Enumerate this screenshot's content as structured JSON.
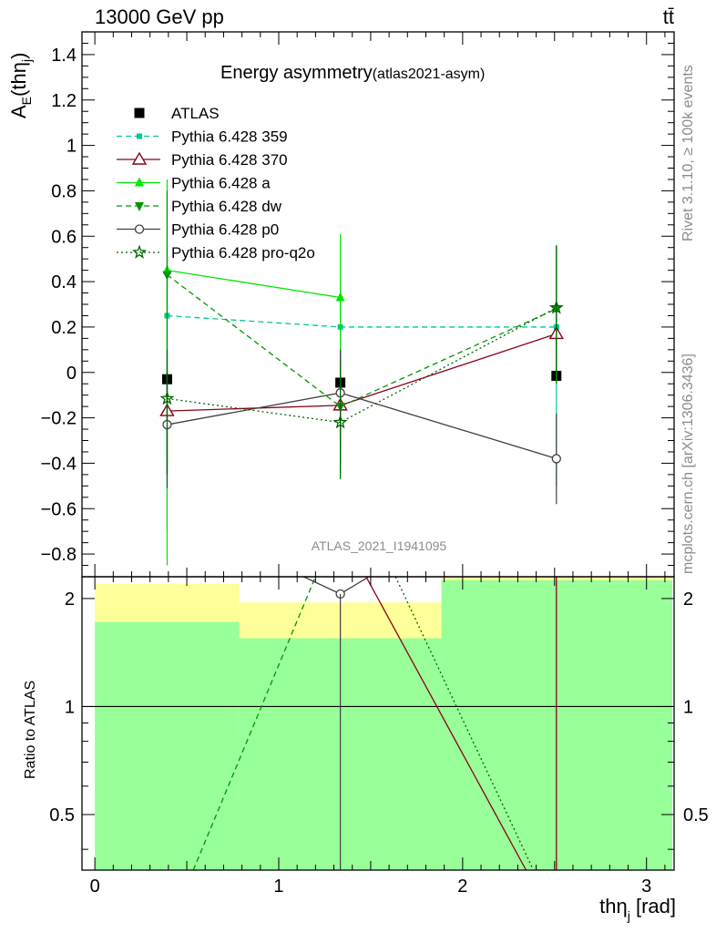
{
  "header": {
    "left": "13000 GeV pp",
    "right": "tt̄"
  },
  "side": {
    "rivet": "Rivet 3.1.10, ≥ 100k events",
    "mcplots": "mcplots.cern.ch [arXiv:1306.3436]"
  },
  "analysis_id": "ATLAS_2021_I1941095",
  "colors": {
    "atlas": "#000000",
    "p359": "#00c896",
    "p370": "#8b0018",
    "pa": "#00e600",
    "pdw": "#009600",
    "pp0": "#404040",
    "pq2o": "#006400",
    "band_yellow": "#ffff99",
    "band_green": "#99ff99"
  },
  "chart_data": [
    {
      "type": "scatter",
      "title": "Energy asymmetry",
      "title_suffix": "(atlas2021-asym)",
      "ylabel": "A_E(thη_j)",
      "ylabel_base": "A",
      "ylabel_sub": "E",
      "ylabel_rest": "(thη",
      "ylabel_sub2": "j",
      "ylabel_end": ")",
      "xlim": [
        -0.07,
        3.15
      ],
      "ylim": [
        -0.9,
        1.5
      ],
      "ytick_labels": [
        "−0.8",
        "−0.6",
        "−0.4",
        "−0.2",
        "0",
        "0.2",
        "0.4",
        "0.6",
        "0.8",
        "1",
        "1.2",
        "1.4"
      ],
      "yticks": [
        -0.8,
        -0.6,
        -0.4,
        -0.2,
        0,
        0.2,
        0.4,
        0.6,
        0.8,
        1,
        1.2,
        1.4
      ],
      "legend_position": "top-left",
      "series": [
        {
          "name": "ATLAS",
          "color": "#000000",
          "marker": "square",
          "line": "none",
          "x": [
            0.393,
            1.335,
            2.51
          ],
          "y": [
            -0.03,
            -0.045,
            -0.015
          ],
          "err": [
            [
              -0.06,
              -0.06
            ],
            [
              -0.06,
              -0.06
            ],
            [
              -0.06,
              -0.06
            ]
          ]
        },
        {
          "name": "Pythia 6.428 359",
          "color": "#00c896",
          "marker": "smallsquare",
          "line": "dashed",
          "x": [
            0.393,
            1.335,
            2.51
          ],
          "y": [
            0.25,
            0.2,
            0.2
          ],
          "err": [
            [
              -0.7,
              0.55
            ],
            [
              -0.45,
              0.4
            ],
            [
              -0.5,
              0.55
            ]
          ]
        },
        {
          "name": "Pythia 6.428 370",
          "color": "#8b0018",
          "marker": "opentriangle",
          "line": "solid",
          "x": [
            0.393,
            1.335,
            2.51
          ],
          "y": [
            -0.17,
            -0.145,
            0.17
          ],
          "err": [
            [
              -0.45,
              0.0
            ],
            [
              -0.35,
              0.1
            ],
            [
              -0.05,
              0.25
            ]
          ]
        },
        {
          "name": "Pythia 6.428 a",
          "color": "#00e600",
          "marker": "triangle",
          "line": "solid",
          "x": [
            0.393,
            1.335
          ],
          "y": [
            0.45,
            0.33
          ],
          "err": [
            [
              -0.85,
              0.85
            ],
            [
              -0.45,
              0.61
            ]
          ]
        },
        {
          "name": "Pythia 6.428 dw",
          "color": "#009600",
          "marker": "downtriangle",
          "line": "dashed",
          "x": [
            0.393,
            1.335,
            2.51
          ],
          "y": [
            0.43,
            -0.15,
            0.28
          ],
          "err": [
            [
              -0.4,
              0.8
            ],
            [
              -0.4,
              0.1
            ],
            [
              -0.05,
              0.56
            ]
          ]
        },
        {
          "name": "Pythia 6.428 p0",
          "color": "#404040",
          "marker": "opencircle",
          "line": "solid",
          "x": [
            0.393,
            1.335,
            2.51
          ],
          "y": [
            -0.23,
            -0.09,
            -0.38
          ],
          "err": [
            [
              -0.51,
              0.0
            ],
            [
              -0.3,
              0.1
            ],
            [
              -0.58,
              -0.18
            ]
          ]
        },
        {
          "name": "Pythia 6.428 pro-q2o",
          "color": "#006400",
          "marker": "star",
          "line": "dotted",
          "x": [
            0.393,
            1.335,
            2.51
          ],
          "y": [
            -0.115,
            -0.22,
            0.285
          ],
          "err": [
            [
              -0.45,
              0.1
            ],
            [
              -0.47,
              0.05
            ],
            [
              0.0,
              0.56
            ]
          ]
        }
      ]
    },
    {
      "type": "line",
      "ylabel": "Ratio to ATLAS",
      "xlabel": "thη_j [rad]",
      "xlabel_base": "thη",
      "xlabel_sub": "j",
      "xlabel_rest": " [rad]",
      "xlim": [
        -0.07,
        3.15
      ],
      "ylim": [
        0.35,
        2.3
      ],
      "xticks": [
        0,
        1,
        2,
        3
      ],
      "xtick_labels": [
        "0",
        "1",
        "2",
        "3"
      ],
      "yticks": [
        0.5,
        1,
        2
      ],
      "ytick_labels": [
        "0.5",
        "1",
        "2"
      ],
      "bands": [
        {
          "x0": 0.0,
          "x1": 0.785,
          "yellow": [
            0.35,
            2.2
          ],
          "green": [
            0.35,
            1.72
          ]
        },
        {
          "x0": 0.785,
          "x1": 1.885,
          "yellow": [
            0.54,
            1.95
          ],
          "green": [
            0.35,
            1.55
          ]
        },
        {
          "x0": 1.885,
          "x1": 3.14,
          "yellow": [
            0.35,
            2.3
          ],
          "green": [
            0.35,
            2.25
          ]
        }
      ],
      "series": [
        {
          "name": "Pythia 6.428 dw",
          "color": "#009600",
          "line": "dashed",
          "x": [
            0.535,
            1.2
          ],
          "y": [
            0.35,
            2.3
          ]
        },
        {
          "name": "Pythia 6.428 p0",
          "color": "#404040",
          "line": "solid",
          "x": [
            1.135,
            1.335,
            1.49
          ],
          "y": [
            2.3,
            2.06,
            2.3
          ],
          "marker_x": 1.335,
          "marker_y": 2.06
        },
        {
          "name": "Pythia 6.428 370",
          "color": "#8b0018",
          "line": "solid",
          "x": [
            1.475,
            2.345
          ],
          "y": [
            2.3,
            0.35
          ]
        },
        {
          "name": "Pythia 6.428 pro-q2o",
          "color": "#006400",
          "line": "dotted",
          "x": [
            1.635,
            2.385
          ],
          "y": [
            2.3,
            0.35
          ]
        },
        {
          "name": "Pythia 6.428 370 (bin 3)",
          "color": "#8b0018",
          "line": "solid",
          "x": [
            2.51,
            2.51
          ],
          "y": [
            0.35,
            2.3
          ]
        }
      ]
    }
  ]
}
